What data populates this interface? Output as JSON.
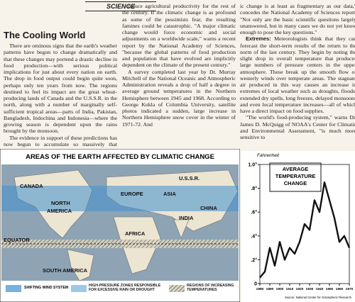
{
  "header": {
    "section": "SCIENCE"
  },
  "article": {
    "title": "The Cooling World",
    "columns": [
      [
        {
          "text": "There are ominous signs that the earth's weather patterns have begun to change dramatically and that these changes may portend a drastic decline in food production—with serious political implications for just about every nation on earth. The drop in food output could begin quite soon, perhaps only ten years from now. The regions destined to feel its impact are the great wheat-producing lands of Canada and the U.S.S.R. in the north, along with a number of marginally self-sufficient tropical areas—parts of India, Pakistan, Bangladesh, Indochina and Indonesia—where the growing season is dependent upon the rains brought by the monsoon."
        },
        {
          "text": "The evidence in support of these predictions has now begun to accumulate so massively that meteorologists are hard-"
        }
      ],
      [
        {
          "text": "reduce agricultural productivity for the rest of the century. If the climatic change is as profound as some of the pessimists fear, the resulting famines could be catastrophic. \"A major climatic change would force economic and social adjustments on a worldwide scale,\" warns a recent report by the National Academy of Sciences, \"because the global patterns of food production and population that have evolved are implicitly dependent on the climate of the present century.\""
        },
        {
          "text": "A survey completed last year by Dr. Murray Mitchell of the National Oceanic and Atmospheric Administration reveals a drop of half a degree in average ground temperatures in the Northern Hemisphere between 1945 and 1968. According to George Kukla of Columbia University, satellite photos indicated a sudden, large increase in Northern Hemisphere snow cover in the winter of 1971-72. And"
        }
      ],
      [
        {
          "text": "ic change is at least as fragmentary as our data,\" concedes the National Academy of Sciences report. \"Not only are the basic scientific questions largely unanswered, but in many cases we do not yet know enough to pose the key questions.\""
        },
        {
          "lead": "Extremes:",
          "text": "Meteorologists think that they can forecast the short-term results of the return to the norm of the last century. They begin by noting the slight drop in overall temperature that produces large numbers of pressure centers in the upper atmosphere. These break up the smooth flow of westerly winds over temperate areas. The stagnant air produced in this way causes an increase in extremes of local weather such as droughts, floods, extended dry spells, long freezes, delayed monsoons and even local temperature increases—all of which have a direct impact on food supplies."
        },
        {
          "text": "\"The world's food-producing system,\" warns Dr. James D. McQuigg of NOAA's Center for Climatic and Environmental Assessment, \"is much more sensitive to"
        }
      ]
    ]
  },
  "map": {
    "title": "AREAS OF THE EARTH AFFECTED BY CLIMATIC CHANGE",
    "labels": [
      "CANADA",
      "NORTH",
      "AMERICA",
      "EUROPE",
      "ASIA",
      "U.S.S.R.",
      "CHINA",
      "INDIA",
      "AFRICA",
      "EQUATOR",
      "SOUTH AMERICA"
    ],
    "legend": [
      "SHIFTING WIND SYSTEM",
      "HIGH-PRESSURE ZONES RESPONSIBLE FOR EXCESSIVE RAIN OR DROUGHT",
      "REGIONS OF INCREASING TEMPERATURES"
    ]
  },
  "temperature_chart": {
    "title": [
      "AVERAGE",
      "TEMPERATURE",
      "CHANGE"
    ],
    "unit": "Fahrenheit",
    "source": "Source: National Center for Atmospheric Research",
    "x": [
      1880,
      1885,
      1890,
      1895,
      1900,
      1905,
      1910,
      1915,
      1920,
      1925,
      1930,
      1935,
      1940,
      1945,
      1950,
      1955,
      1960,
      1965,
      1970
    ],
    "values": [
      0.05,
      0.1,
      0.3,
      0.15,
      0.35,
      0.2,
      0.3,
      0.25,
      0.35,
      0.5,
      0.45,
      0.7,
      0.6,
      0.85,
      0.7,
      0.55,
      0.35,
      0.4,
      0.3
    ],
    "xlim": [
      1880,
      1970
    ],
    "ylim": [
      0,
      1.0
    ],
    "xticks": [
      1880,
      1890,
      1900,
      1910,
      1920,
      1930,
      1940,
      1950,
      1960,
      1970
    ],
    "yticks": [
      {
        "value": 0,
        "label": "0"
      },
      {
        "value": 0.2,
        "label": ".2°"
      },
      {
        "value": 0.4,
        "label": ".4°"
      },
      {
        "value": 0.6,
        "label": ".6°"
      },
      {
        "value": 0.8,
        "label": ".8°"
      },
      {
        "value": 1.0,
        "label": "1.0°"
      }
    ],
    "color": "#111111"
  }
}
